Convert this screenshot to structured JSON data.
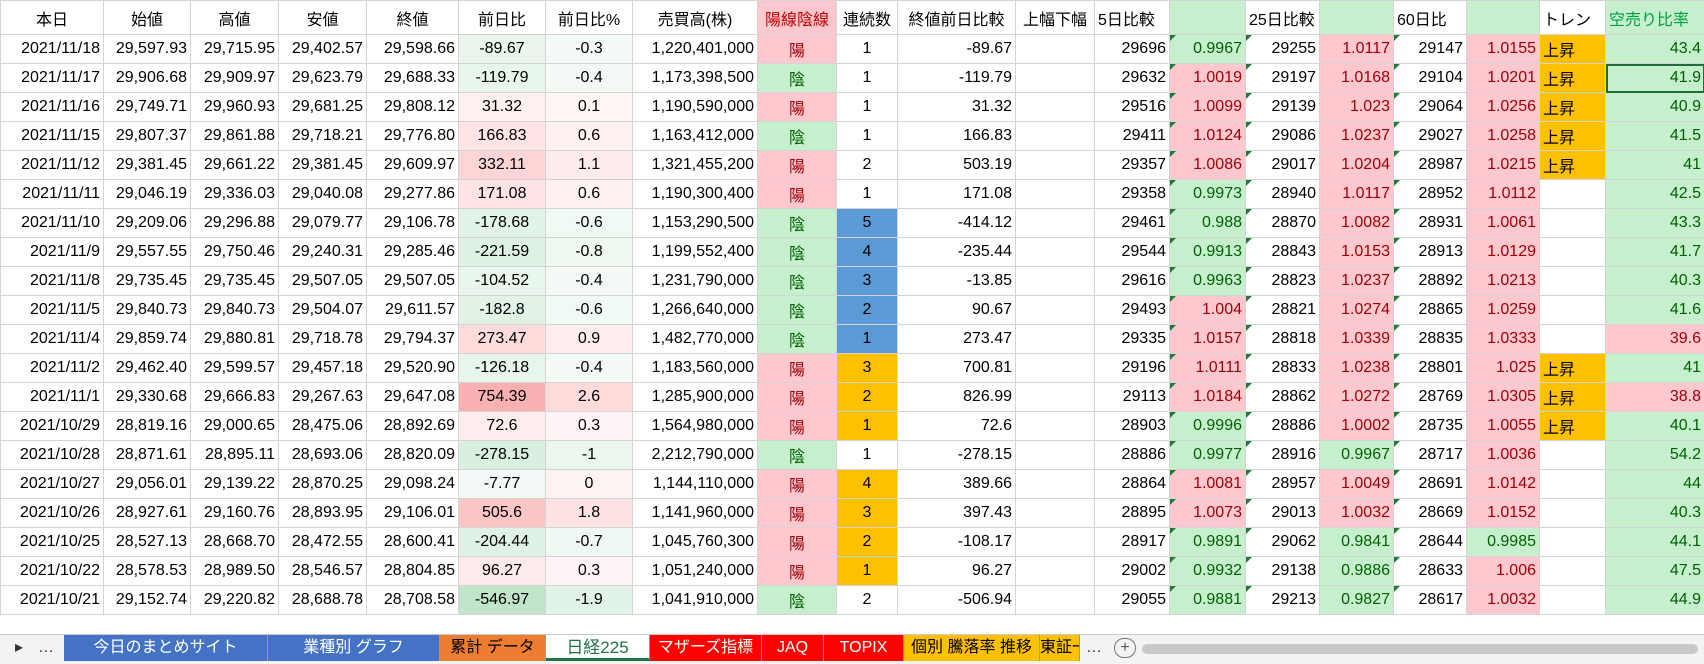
{
  "table": {
    "header": [
      "本日",
      "始値",
      "高値",
      "安値",
      "終値",
      "前日比",
      "前日比%",
      "売買高(株)",
      "陽線陰線",
      "連続数",
      "終値前日比較",
      "上幅下幅",
      "5日比較",
      null,
      "25日比較",
      null,
      "60日比",
      null,
      "トレン",
      "空売り比率"
    ],
    "rows": [
      [
        "2021/11/18",
        "29,597.93",
        "29,715.95",
        "29,402.57",
        "29,598.66",
        "-89.67",
        "-0.3",
        "1,220,401,000",
        "陽",
        "1",
        "-89.67",
        null,
        "29696",
        "0.9967",
        "29255",
        "1.0117",
        "29147",
        "1.0155",
        "上昇",
        "43.4"
      ],
      [
        "2021/11/17",
        "29,906.68",
        "29,909.97",
        "29,623.79",
        "29,688.33",
        "-119.79",
        "-0.4",
        "1,173,398,500",
        "陰",
        "1",
        "-119.79",
        null,
        "29632",
        "1.0019",
        "29197",
        "1.0168",
        "29104",
        "1.0201",
        "上昇",
        "41.9"
      ],
      [
        "2021/11/16",
        "29,749.71",
        "29,960.93",
        "29,681.25",
        "29,808.12",
        "31.32",
        "0.1",
        "1,190,590,000",
        "陽",
        "1",
        "31.32",
        null,
        "29516",
        "1.0099",
        "29139",
        "1.023",
        "29064",
        "1.0256",
        "上昇",
        "40.9"
      ],
      [
        "2021/11/15",
        "29,807.37",
        "29,861.88",
        "29,718.21",
        "29,776.80",
        "166.83",
        "0.6",
        "1,163,412,000",
        "陰",
        "1",
        "166.83",
        null,
        "29411",
        "1.0124",
        "29086",
        "1.0237",
        "29027",
        "1.0258",
        "上昇",
        "41.5"
      ],
      [
        "2021/11/12",
        "29,381.45",
        "29,661.22",
        "29,381.45",
        "29,609.97",
        "332.11",
        "1.1",
        "1,321,455,200",
        "陽",
        "2",
        "503.19",
        null,
        "29357",
        "1.0086",
        "29017",
        "1.0204",
        "28987",
        "1.0215",
        "上昇",
        "41"
      ],
      [
        "2021/11/11",
        "29,046.19",
        "29,336.03",
        "29,040.08",
        "29,277.86",
        "171.08",
        "0.6",
        "1,190,300,400",
        "陽",
        "1",
        "171.08",
        null,
        "29358",
        "0.9973",
        "28940",
        "1.0117",
        "28952",
        "1.0112",
        null,
        "42.5"
      ],
      [
        "2021/11/10",
        "29,209.06",
        "29,296.88",
        "29,079.77",
        "29,106.78",
        "-178.68",
        "-0.6",
        "1,153,290,500",
        "陰",
        "5",
        "-414.12",
        null,
        "29461",
        "0.988",
        "28870",
        "1.0082",
        "28931",
        "1.0061",
        null,
        "43.3"
      ],
      [
        "2021/11/9",
        "29,557.55",
        "29,750.46",
        "29,240.31",
        "29,285.46",
        "-221.59",
        "-0.8",
        "1,199,552,400",
        "陰",
        "4",
        "-235.44",
        null,
        "29544",
        "0.9913",
        "28843",
        "1.0153",
        "28913",
        "1.0129",
        null,
        "41.7"
      ],
      [
        "2021/11/8",
        "29,735.45",
        "29,735.45",
        "29,507.05",
        "29,507.05",
        "-104.52",
        "-0.4",
        "1,231,790,000",
        "陰",
        "3",
        "-13.85",
        null,
        "29616",
        "0.9963",
        "28823",
        "1.0237",
        "28892",
        "1.0213",
        null,
        "40.3"
      ],
      [
        "2021/11/5",
        "29,840.73",
        "29,840.73",
        "29,504.07",
        "29,611.57",
        "-182.8",
        "-0.6",
        "1,266,640,000",
        "陰",
        "2",
        "90.67",
        null,
        "29493",
        "1.004",
        "28821",
        "1.0274",
        "28865",
        "1.0259",
        null,
        "41.6"
      ],
      [
        "2021/11/4",
        "29,859.74",
        "29,880.81",
        "29,718.78",
        "29,794.37",
        "273.47",
        "0.9",
        "1,482,770,000",
        "陰",
        "1",
        "273.47",
        null,
        "29335",
        "1.0157",
        "28818",
        "1.0339",
        "28835",
        "1.0333",
        null,
        "39.6"
      ],
      [
        "2021/11/2",
        "29,462.40",
        "29,599.57",
        "29,457.18",
        "29,520.90",
        "-126.18",
        "-0.4",
        "1,183,560,000",
        "陽",
        "3",
        "700.81",
        null,
        "29196",
        "1.0111",
        "28833",
        "1.0238",
        "28801",
        "1.025",
        "上昇",
        "41"
      ],
      [
        "2021/11/1",
        "29,330.68",
        "29,666.83",
        "29,267.63",
        "29,647.08",
        "754.39",
        "2.6",
        "1,285,900,000",
        "陽",
        "2",
        "826.99",
        null,
        "29113",
        "1.0184",
        "28862",
        "1.0272",
        "28769",
        "1.0305",
        "上昇",
        "38.8"
      ],
      [
        "2021/10/29",
        "28,819.16",
        "29,000.65",
        "28,475.06",
        "28,892.69",
        "72.6",
        "0.3",
        "1,564,980,000",
        "陽",
        "1",
        "72.6",
        null,
        "28903",
        "0.9996",
        "28886",
        "1.0002",
        "28735",
        "1.0055",
        "上昇",
        "40.1"
      ],
      [
        "2021/10/28",
        "28,871.61",
        "28,895.11",
        "28,693.06",
        "28,820.09",
        "-278.15",
        "-1",
        "2,212,790,000",
        "陰",
        "1",
        "-278.15",
        null,
        "28886",
        "0.9977",
        "28916",
        "0.9967",
        "28717",
        "1.0036",
        null,
        "54.2"
      ],
      [
        "2021/10/27",
        "29,056.01",
        "29,139.22",
        "28,870.25",
        "29,098.24",
        "-7.77",
        "0",
        "1,144,110,000",
        "陽",
        "4",
        "389.66",
        null,
        "28864",
        "1.0081",
        "28957",
        "1.0049",
        "28691",
        "1.0142",
        null,
        "44"
      ],
      [
        "2021/10/26",
        "28,927.61",
        "29,160.76",
        "28,893.95",
        "29,106.01",
        "505.6",
        "1.8",
        "1,141,960,000",
        "陽",
        "3",
        "397.43",
        null,
        "28895",
        "1.0073",
        "29013",
        "1.0032",
        "28669",
        "1.0152",
        null,
        "40.3"
      ],
      [
        "2021/10/25",
        "28,527.13",
        "28,668.70",
        "28,472.55",
        "28,600.41",
        "-204.44",
        "-0.7",
        "1,045,760,300",
        "陽",
        "2",
        "-108.17",
        null,
        "28917",
        "0.9891",
        "29062",
        "0.9841",
        "28644",
        "0.9985",
        null,
        "44.1"
      ],
      [
        "2021/10/22",
        "28,578.53",
        "28,989.50",
        "28,546.57",
        "28,804.85",
        "96.27",
        "0.3",
        "1,051,240,000",
        "陽",
        "1",
        "96.27",
        null,
        "29002",
        "0.9932",
        "29138",
        "0.9886",
        "28633",
        "1.006",
        null,
        "47.5"
      ],
      [
        "2021/10/21",
        "29,152.74",
        "29,220.82",
        "28,688.78",
        "28,708.58",
        "-546.97",
        "-1.9",
        "1,041,910,000",
        "陰",
        "2",
        "-506.94",
        null,
        "29055",
        "0.9881",
        "29213",
        "0.9827",
        "28617",
        "1.0032",
        null,
        "44.9"
      ]
    ]
  },
  "tabs": {
    "nav": [
      "▸",
      "…"
    ],
    "sheets": [
      "今日のまとめサイト",
      "業種別 グラフ",
      "累計 データ",
      "日経225",
      "マザーズ指標",
      "JAQ",
      "TOPIX",
      "個別 騰落率 推移",
      "東証一"
    ],
    "more": "…",
    "add": "+"
  }
}
